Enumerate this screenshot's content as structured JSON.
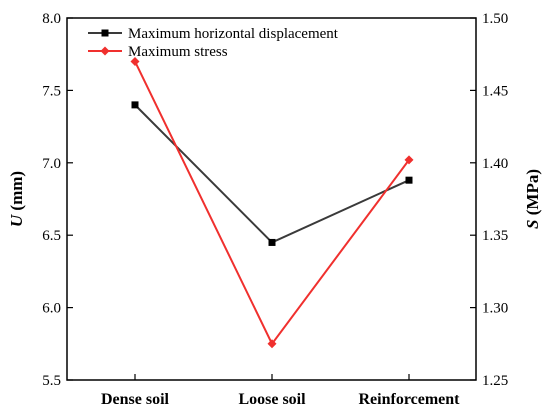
{
  "chart_data": {
    "type": "line",
    "categories": [
      "Dense soil",
      "Loose soil",
      "Reinforcement"
    ],
    "series": [
      {
        "name": "Maximum horizontal displacement",
        "axis": "left",
        "color": "#3a3a3a",
        "marker": "square",
        "values": [
          7.4,
          6.45,
          6.88
        ]
      },
      {
        "name": "Maximum stress",
        "axis": "right",
        "color": "#f0302e",
        "marker": "diamond",
        "values": [
          1.47,
          1.275,
          1.402
        ]
      }
    ],
    "left_axis": {
      "label_var": "U",
      "label_unit": " (mm)",
      "ylim": [
        5.5,
        8.0
      ],
      "ticks": [
        "5.5",
        "6.0",
        "6.5",
        "7.0",
        "7.5",
        "8.0"
      ]
    },
    "right_axis": {
      "label_var": "S",
      "label_unit": " (MPa)",
      "ylim": [
        1.25,
        1.5
      ],
      "ticks": [
        "1.25",
        "1.30",
        "1.35",
        "1.40",
        "1.45",
        "1.50"
      ]
    },
    "legend_position": "top-left",
    "grid": false
  }
}
